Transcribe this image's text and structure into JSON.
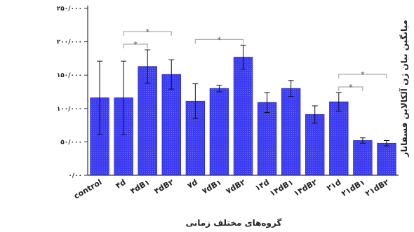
{
  "chart_data": {
    "type": "bar",
    "title": "",
    "xlabel": "گروه‌های مختلف زمانی",
    "ylabel": "میانگین بیان ژن آلکالاین فسفاتاز",
    "ylim": [
      0,
      250000
    ],
    "yticks": [
      {
        "value": 0,
        "label": "۰/۰۰"
      },
      {
        "value": 50000,
        "label": "۵۰/۰۰۰"
      },
      {
        "value": 100000,
        "label": "۱۰۰/۰۰۰"
      },
      {
        "value": 150000,
        "label": "۱۵۰/۰۰۰"
      },
      {
        "value": 200000,
        "label": "۲۰۰/۰۰۰"
      },
      {
        "value": 250000,
        "label": "۲۵۰/۰۰۰"
      }
    ],
    "categories": [
      "control",
      "۴d",
      "۴dB۱",
      "۴dB۲",
      "۷d",
      "۷dB۱",
      "۷dB۲",
      "۱۴d",
      "۱۴dB۱",
      "۱۴dB۲",
      "۲۱d",
      "۲۱dB۱",
      "۲۱dB۲"
    ],
    "values": [
      116000,
      116000,
      163000,
      151000,
      111000,
      130000,
      177000,
      109000,
      130000,
      91000,
      110000,
      52000,
      48000
    ],
    "errors": [
      55000,
      55000,
      25000,
      22000,
      26000,
      5000,
      18000,
      15000,
      12000,
      13000,
      14000,
      4000,
      4000
    ],
    "bar_color": "#3c3cf0",
    "significance": [
      {
        "from": 1,
        "to": 2,
        "label": "*"
      },
      {
        "from": 1,
        "to": 3,
        "label": "*"
      },
      {
        "from": 4,
        "to": 6,
        "label": "*"
      },
      {
        "from": 10,
        "to": 11,
        "label": "*"
      },
      {
        "from": 10,
        "to": 12,
        "label": "*"
      }
    ]
  }
}
